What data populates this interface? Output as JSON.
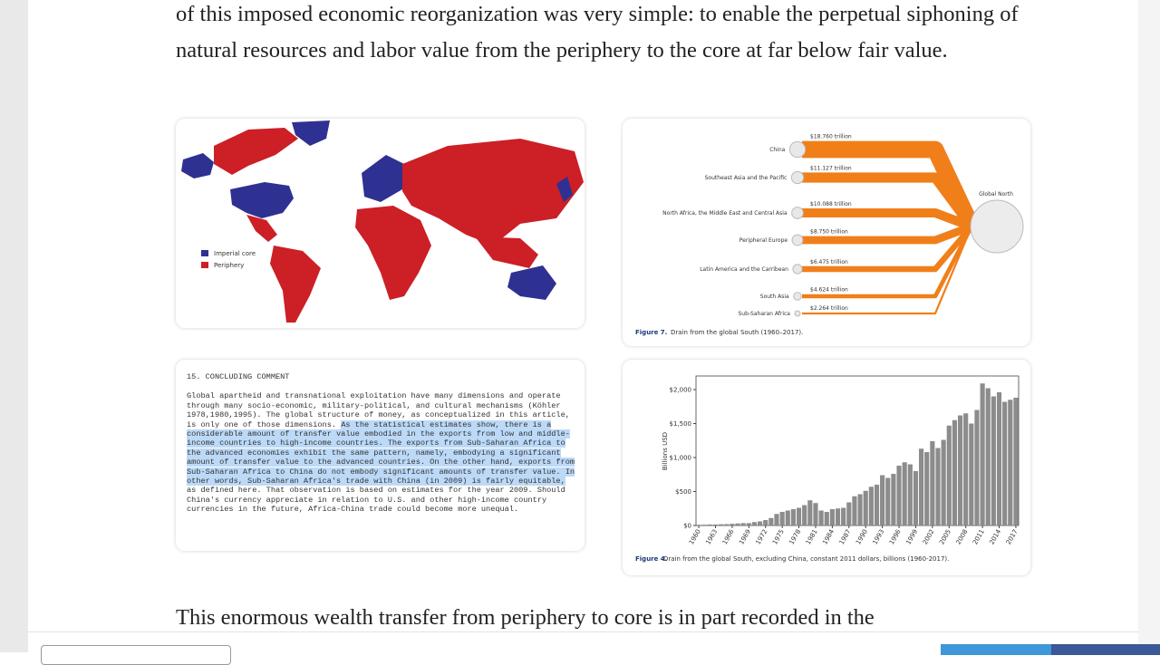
{
  "paragraphs": [
    "of this imposed economic reorganization was very simple: to enable the perpetual siphoning of natural resources and labor value from the periphery to the core at far below fair value.",
    "This enormous wealth transfer from periphery to core is in part recorded in the"
  ],
  "map": {
    "legend": [
      {
        "name": "Imperial core",
        "color": "#2e3192"
      },
      {
        "name": "Periphery",
        "color": "#cc1f26"
      }
    ]
  },
  "flow": {
    "target": "Global North",
    "color": "#f07f1a",
    "caption_label": "Figure 7.",
    "caption": "Drain from the global South (1960–2017).",
    "sources": [
      {
        "name": "China",
        "value": 18.76,
        "value_label": "$18.760 trillion"
      },
      {
        "name": "Southeast Asia and the Pacific",
        "value": 11.127,
        "value_label": "$11.127 trillion"
      },
      {
        "name": "North Africa, the Middle East and Central Asia",
        "value": 10.088,
        "value_label": "$10.088 trillion"
      },
      {
        "name": "Peripheral Europe",
        "value": 8.75,
        "value_label": "$8.750 trillion"
      },
      {
        "name": "Latin America and the Carribean",
        "value": 6.475,
        "value_label": "$6.475 trillion"
      },
      {
        "name": "South Asia",
        "value": 4.624,
        "value_label": "$4.624 trillion"
      },
      {
        "name": "Sub-Saharan Africa",
        "value": 2.264,
        "value_label": "$2.264 trillion"
      }
    ]
  },
  "excerpt": {
    "heading": "15. CONCLUDING COMMENT",
    "before": "Global apartheid and transnational exploitation have many dimensions and operate through many socio-economic, military-political, and cultural mechanisms (Köhler 1978,1980,1995). The global structure of money, as conceptualized in this article, is only one of those dimensions. ",
    "highlighted": "As the statistical estimates show, there is a considerable amount of transfer value embodied in the exports from low and middle-income countries to high-income countries. The exports from Sub-Saharan Africa to the advanced economies exhibit the same pattern, namely, embodying a significant amount of transfer value to the advanced countries. On the other hand, exports from Sub-Saharan Africa to China do not embody significant amounts of transfer value. In other words, Sub-Saharan Africa's trade with China (in 2009) is fairly equitable,",
    "after": " as defined here. That observation is based on estimates for the year 2009. Should China's currency appreciate in relation to U.S. and other high-income country currencies in the future, Africa-China trade could become more unequal."
  },
  "chart_data": {
    "type": "bar",
    "ylabel": "Billions USD",
    "caption_label": "Figure 4.",
    "caption": "Drain from the global South, excluding China, constant 2011 dollars, billions (1960-2017).",
    "color": "#8c8c8c",
    "x": [
      1960,
      1961,
      1962,
      1963,
      1964,
      1965,
      1966,
      1967,
      1968,
      1969,
      1970,
      1971,
      1972,
      1973,
      1974,
      1975,
      1976,
      1977,
      1978,
      1979,
      1980,
      1981,
      1982,
      1983,
      1984,
      1985,
      1986,
      1987,
      1988,
      1989,
      1990,
      1991,
      1992,
      1993,
      1994,
      1995,
      1996,
      1997,
      1998,
      1999,
      2000,
      2001,
      2002,
      2003,
      2004,
      2005,
      2006,
      2007,
      2008,
      2009,
      2010,
      2011,
      2012,
      2013,
      2014,
      2015,
      2016,
      2017
    ],
    "values": [
      10,
      12,
      15,
      15,
      18,
      20,
      25,
      30,
      35,
      35,
      50,
      60,
      80,
      110,
      170,
      200,
      220,
      240,
      260,
      300,
      370,
      330,
      220,
      200,
      240,
      250,
      260,
      340,
      430,
      460,
      510,
      570,
      600,
      740,
      700,
      760,
      880,
      930,
      900,
      800,
      1130,
      1080,
      1240,
      1140,
      1260,
      1470,
      1550,
      1620,
      1650,
      1500,
      1700,
      2090,
      2020,
      1900,
      1960,
      1820,
      1850,
      1880
    ],
    "xticks": [
      1960,
      1963,
      1966,
      1969,
      1972,
      1975,
      1978,
      1981,
      1984,
      1987,
      1990,
      1993,
      1996,
      1999,
      2002,
      2005,
      2008,
      2011,
      2014,
      2017
    ],
    "ylim": [
      0,
      2200
    ],
    "yticks": [
      {
        "value": 0,
        "label": "$0"
      },
      {
        "value": 500,
        "label": "$500"
      },
      {
        "value": 1000,
        "label": "$1,000"
      },
      {
        "value": 1500,
        "label": "$1,500"
      },
      {
        "value": 2000,
        "label": "$2,000"
      }
    ]
  }
}
